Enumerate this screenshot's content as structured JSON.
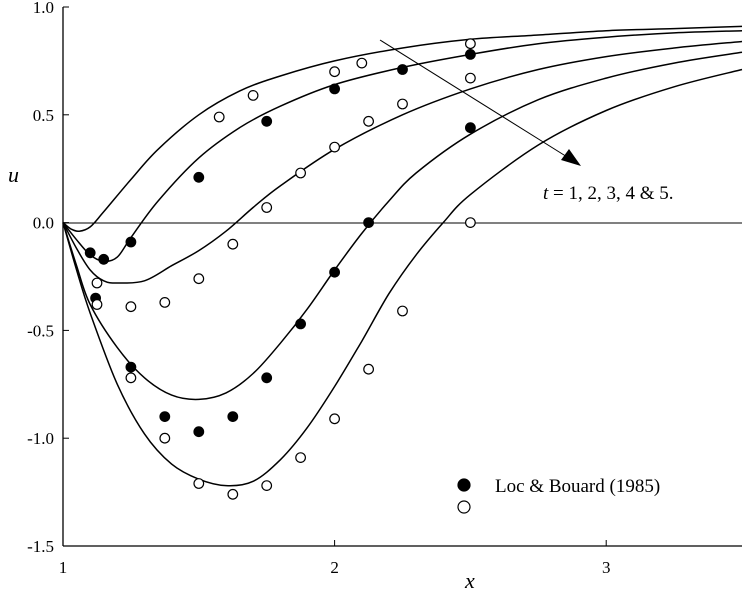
{
  "chart_data": {
    "type": "line",
    "xlabel": "x",
    "ylabel": "u",
    "xlim": [
      1,
      3.5
    ],
    "ylim": [
      -1.5,
      1.0
    ],
    "xticks": [
      1,
      2,
      3
    ],
    "yticks": [
      1.0,
      0.5,
      0.0,
      -0.5,
      -1.0,
      -1.5
    ],
    "xtick_labels": [
      "1",
      "2",
      "3"
    ],
    "ytick_labels": [
      "1.0",
      "0.5",
      "0.0",
      "-0.5",
      "-1.0",
      "-1.5"
    ],
    "annotation": {
      "var": "t",
      "rest": " = 1, 2, 3, 4 & 5."
    },
    "legend": {
      "placement": "bottom-right",
      "entries": [
        {
          "marker": "filled-circle",
          "label": "Loc & Bouard (1985)"
        },
        {
          "marker": "open-circle",
          "label": ""
        }
      ]
    },
    "series": [
      {
        "t": 1,
        "kind": "line",
        "points": [
          [
            1.0,
            0.0
          ],
          [
            1.03,
            -0.03
          ],
          [
            1.06,
            -0.04
          ],
          [
            1.1,
            -0.02
          ],
          [
            1.15,
            0.05
          ],
          [
            1.25,
            0.2
          ],
          [
            1.35,
            0.34
          ],
          [
            1.5,
            0.5
          ],
          [
            1.65,
            0.61
          ],
          [
            1.8,
            0.68
          ],
          [
            2.0,
            0.75
          ],
          [
            2.25,
            0.81
          ],
          [
            2.5,
            0.85
          ],
          [
            2.75,
            0.87
          ],
          [
            3.0,
            0.89
          ],
          [
            3.25,
            0.9
          ],
          [
            3.5,
            0.91
          ]
        ]
      },
      {
        "t": 2,
        "kind": "line",
        "points": [
          [
            1.0,
            0.0
          ],
          [
            1.05,
            -0.08
          ],
          [
            1.1,
            -0.15
          ],
          [
            1.15,
            -0.18
          ],
          [
            1.2,
            -0.16
          ],
          [
            1.25,
            -0.07
          ],
          [
            1.35,
            0.1
          ],
          [
            1.5,
            0.3
          ],
          [
            1.65,
            0.44
          ],
          [
            1.8,
            0.54
          ],
          [
            2.0,
            0.64
          ],
          [
            2.25,
            0.72
          ],
          [
            2.5,
            0.78
          ],
          [
            2.75,
            0.83
          ],
          [
            3.0,
            0.86
          ],
          [
            3.25,
            0.88
          ],
          [
            3.5,
            0.89
          ]
        ]
      },
      {
        "t": 3,
        "kind": "line",
        "points": [
          [
            1.0,
            0.0
          ],
          [
            1.05,
            -0.12
          ],
          [
            1.1,
            -0.22
          ],
          [
            1.15,
            -0.27
          ],
          [
            1.2,
            -0.28
          ],
          [
            1.3,
            -0.27
          ],
          [
            1.4,
            -0.2
          ],
          [
            1.5,
            -0.13
          ],
          [
            1.6,
            -0.04
          ],
          [
            1.7,
            0.07
          ],
          [
            1.8,
            0.17
          ],
          [
            2.0,
            0.34
          ],
          [
            2.25,
            0.5
          ],
          [
            2.5,
            0.62
          ],
          [
            2.75,
            0.71
          ],
          [
            3.0,
            0.77
          ],
          [
            3.25,
            0.81
          ],
          [
            3.5,
            0.84
          ]
        ]
      },
      {
        "t": 4,
        "kind": "line",
        "points": [
          [
            1.0,
            0.0
          ],
          [
            1.05,
            -0.2
          ],
          [
            1.1,
            -0.38
          ],
          [
            1.2,
            -0.58
          ],
          [
            1.3,
            -0.72
          ],
          [
            1.4,
            -0.8
          ],
          [
            1.5,
            -0.82
          ],
          [
            1.6,
            -0.79
          ],
          [
            1.7,
            -0.7
          ],
          [
            1.8,
            -0.56
          ],
          [
            1.9,
            -0.4
          ],
          [
            2.0,
            -0.22
          ],
          [
            2.1,
            -0.05
          ],
          [
            2.2,
            0.1
          ],
          [
            2.3,
            0.23
          ],
          [
            2.5,
            0.41
          ],
          [
            2.75,
            0.57
          ],
          [
            3.0,
            0.67
          ],
          [
            3.25,
            0.74
          ],
          [
            3.5,
            0.79
          ]
        ]
      },
      {
        "t": 5,
        "kind": "line",
        "points": [
          [
            1.0,
            0.0
          ],
          [
            1.05,
            -0.22
          ],
          [
            1.1,
            -0.42
          ],
          [
            1.2,
            -0.75
          ],
          [
            1.3,
            -0.98
          ],
          [
            1.4,
            -1.12
          ],
          [
            1.5,
            -1.19
          ],
          [
            1.6,
            -1.22
          ],
          [
            1.7,
            -1.2
          ],
          [
            1.8,
            -1.1
          ],
          [
            1.9,
            -0.95
          ],
          [
            2.0,
            -0.76
          ],
          [
            2.1,
            -0.55
          ],
          [
            2.2,
            -0.33
          ],
          [
            2.3,
            -0.15
          ],
          [
            2.4,
            0.0
          ],
          [
            2.5,
            0.13
          ],
          [
            2.75,
            0.36
          ],
          [
            3.0,
            0.52
          ],
          [
            3.25,
            0.63
          ],
          [
            3.5,
            0.71
          ]
        ]
      },
      {
        "kind": "filled",
        "points": [
          [
            1.1,
            -0.14
          ],
          [
            1.12,
            -0.35
          ],
          [
            1.15,
            -0.17
          ],
          [
            1.25,
            -0.09
          ],
          [
            1.25,
            -0.67
          ],
          [
            1.375,
            -0.9
          ],
          [
            1.5,
            -0.97
          ],
          [
            1.5,
            0.21
          ],
          [
            1.625,
            -0.9
          ],
          [
            1.75,
            0.47
          ],
          [
            1.75,
            -0.72
          ],
          [
            1.875,
            -0.47
          ],
          [
            2.0,
            -0.23
          ],
          [
            2.0,
            0.62
          ],
          [
            2.125,
            0.0
          ],
          [
            2.25,
            0.71
          ],
          [
            2.5,
            0.78
          ],
          [
            2.5,
            0.44
          ]
        ]
      },
      {
        "kind": "open",
        "points": [
          [
            1.125,
            -0.28
          ],
          [
            1.125,
            -0.38
          ],
          [
            1.25,
            -0.39
          ],
          [
            1.25,
            -0.72
          ],
          [
            1.375,
            -0.37
          ],
          [
            1.375,
            -1.0
          ],
          [
            1.5,
            -0.26
          ],
          [
            1.5,
            -1.21
          ],
          [
            1.575,
            0.49
          ],
          [
            1.625,
            -0.1
          ],
          [
            1.625,
            -1.26
          ],
          [
            1.7,
            0.59
          ],
          [
            1.75,
            0.07
          ],
          [
            1.75,
            -1.22
          ],
          [
            1.875,
            0.23
          ],
          [
            1.875,
            -1.09
          ],
          [
            2.0,
            0.35
          ],
          [
            2.0,
            0.7
          ],
          [
            2.0,
            -0.91
          ],
          [
            2.1,
            0.74
          ],
          [
            2.125,
            0.47
          ],
          [
            2.125,
            -0.68
          ],
          [
            2.25,
            0.55
          ],
          [
            2.25,
            -0.41
          ],
          [
            2.5,
            0.83
          ],
          [
            2.5,
            0.67
          ],
          [
            2.5,
            0.0
          ]
        ]
      }
    ]
  }
}
